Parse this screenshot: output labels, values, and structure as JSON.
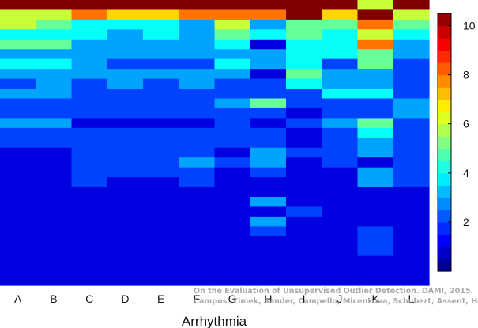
{
  "chart_data": {
    "type": "heatmap",
    "title": "",
    "xlabel": "Arrhythmia",
    "ylabel": "",
    "categories": [
      "A",
      "B",
      "C",
      "D",
      "E",
      "F",
      "G",
      "H",
      "I",
      "J",
      "K",
      "L"
    ],
    "n_rows": 29,
    "colorbar": {
      "min": 0,
      "max": 10.5,
      "ticks": [
        2,
        4,
        6,
        8,
        10
      ],
      "colormap": "jet"
    },
    "matrix": [
      [
        10.5,
        10.5,
        10.5,
        10.5,
        10.5,
        10.5,
        10.5,
        10.5,
        10.5,
        10.5,
        6.0,
        10.5
      ],
      [
        6.0,
        6.0,
        8.0,
        7.0,
        7.0,
        8.0,
        8.0,
        8.0,
        10.5,
        7.0,
        10.5,
        6.0
      ],
      [
        6.0,
        5.0,
        4.0,
        4.0,
        4.0,
        3.0,
        6.0,
        3.0,
        5.0,
        5.0,
        8.0,
        5.0
      ],
      [
        4.0,
        4.0,
        4.0,
        3.0,
        4.0,
        3.0,
        5.0,
        4.0,
        5.0,
        4.0,
        6.0,
        4.0
      ],
      [
        5.0,
        5.0,
        3.0,
        3.0,
        3.0,
        3.0,
        4.0,
        1.0,
        4.0,
        4.0,
        8.0,
        3.0
      ],
      [
        3.0,
        3.0,
        3.0,
        3.0,
        3.0,
        3.0,
        3.0,
        3.0,
        4.0,
        4.0,
        5.0,
        3.0
      ],
      [
        4.0,
        4.0,
        3.0,
        2.0,
        2.0,
        2.0,
        4.0,
        3.0,
        4.0,
        2.0,
        5.0,
        2.0
      ],
      [
        3.0,
        3.0,
        3.0,
        3.0,
        3.0,
        3.0,
        3.0,
        1.0,
        5.0,
        3.0,
        3.0,
        2.0
      ],
      [
        2.0,
        3.0,
        2.0,
        3.0,
        2.0,
        3.0,
        2.0,
        2.0,
        4.0,
        3.0,
        3.0,
        2.0
      ],
      [
        3.0,
        3.0,
        2.0,
        2.0,
        2.0,
        2.0,
        2.0,
        2.0,
        2.0,
        4.0,
        4.0,
        2.0
      ],
      [
        2.0,
        2.0,
        2.0,
        2.0,
        2.0,
        2.0,
        3.0,
        5.0,
        2.0,
        2.0,
        2.0,
        3.0
      ],
      [
        2.0,
        2.0,
        2.0,
        2.0,
        2.0,
        2.0,
        2.0,
        2.0,
        1.0,
        2.0,
        2.0,
        3.0
      ],
      [
        3.0,
        3.0,
        1.0,
        1.0,
        1.0,
        1.0,
        2.0,
        1.0,
        2.0,
        3.0,
        5.0,
        2.0
      ],
      [
        2.0,
        2.0,
        2.0,
        2.0,
        2.0,
        2.0,
        2.0,
        2.0,
        1.0,
        2.0,
        4.0,
        2.0
      ],
      [
        2.0,
        2.0,
        2.0,
        2.0,
        2.0,
        2.0,
        2.0,
        2.0,
        1.0,
        2.0,
        3.0,
        2.0
      ],
      [
        1.0,
        1.0,
        2.0,
        2.0,
        2.0,
        2.0,
        1.0,
        3.0,
        2.0,
        2.0,
        3.0,
        2.0
      ],
      [
        1.0,
        1.0,
        2.0,
        2.0,
        2.0,
        3.0,
        2.0,
        3.0,
        1.0,
        2.0,
        1.0,
        2.0
      ],
      [
        1.0,
        1.0,
        2.0,
        2.0,
        2.0,
        2.0,
        1.0,
        2.0,
        1.0,
        1.0,
        3.0,
        2.0
      ],
      [
        1.0,
        1.0,
        2.0,
        1.0,
        1.0,
        2.0,
        1.0,
        1.0,
        1.0,
        1.0,
        3.0,
        2.0
      ],
      [
        1.0,
        1.0,
        1.0,
        1.0,
        1.0,
        1.0,
        1.0,
        1.0,
        1.0,
        1.0,
        1.0,
        1.0
      ],
      [
        1.0,
        1.0,
        1.0,
        1.0,
        1.0,
        1.0,
        1.0,
        3.0,
        1.0,
        1.0,
        1.0,
        1.0
      ],
      [
        1.0,
        1.0,
        1.0,
        1.0,
        1.0,
        1.0,
        1.0,
        1.0,
        2.0,
        1.0,
        1.0,
        1.0
      ],
      [
        1.0,
        1.0,
        1.0,
        1.0,
        1.0,
        1.0,
        1.0,
        3.0,
        1.0,
        1.0,
        1.0,
        1.0
      ],
      [
        1.0,
        1.0,
        1.0,
        1.0,
        1.0,
        1.0,
        1.0,
        2.0,
        1.0,
        1.0,
        2.0,
        1.0
      ],
      [
        1.0,
        1.0,
        1.0,
        1.0,
        1.0,
        1.0,
        1.0,
        1.0,
        1.0,
        1.0,
        2.0,
        1.0
      ],
      [
        1.0,
        1.0,
        1.0,
        1.0,
        1.0,
        1.0,
        1.0,
        1.0,
        1.0,
        1.0,
        2.0,
        1.0
      ],
      [
        1.0,
        1.0,
        1.0,
        1.0,
        1.0,
        1.0,
        1.0,
        1.0,
        1.0,
        1.0,
        1.0,
        1.0
      ],
      [
        1.0,
        1.0,
        1.0,
        1.0,
        1.0,
        1.0,
        1.0,
        1.0,
        1.0,
        1.0,
        1.0,
        1.0
      ],
      [
        1.0,
        1.0,
        1.0,
        1.0,
        1.0,
        1.0,
        1.0,
        1.0,
        1.0,
        1.0,
        1.0,
        1.0
      ]
    ]
  },
  "watermark": {
    "line1": "On the Evaluation of Unsupervised Outlier Detection. DAMI, 2015.",
    "line2": "Campos, Zimek, Sander, Campello, Micenkova, Schubert, Assent, Houle"
  }
}
